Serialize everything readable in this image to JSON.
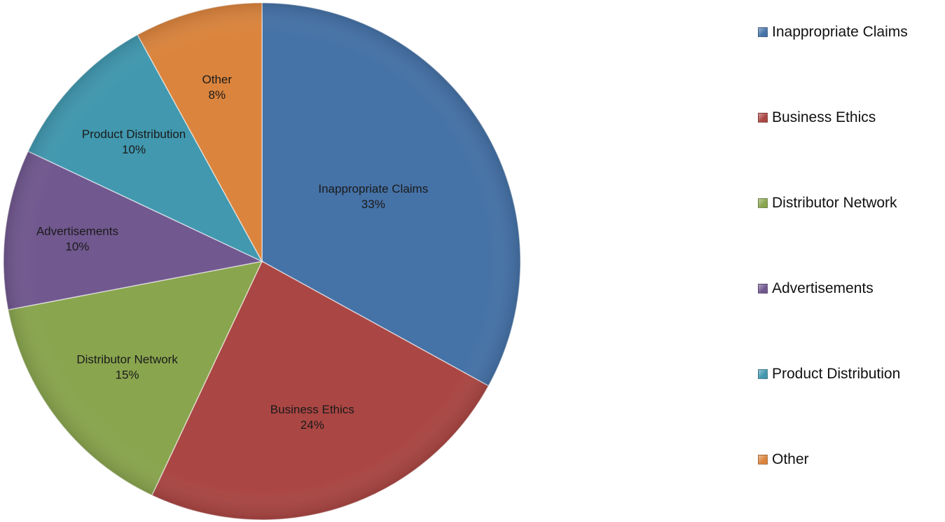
{
  "chart_data": {
    "type": "pie",
    "categories": [
      "Inappropriate Claims",
      "Business Ethics",
      "Distributor Network",
      "Advertisements",
      "Product Distribution",
      "Other"
    ],
    "values": [
      33,
      24,
      15,
      10,
      10,
      8
    ],
    "value_labels": [
      "33%",
      "24%",
      "15%",
      "10%",
      "10%",
      "8%"
    ],
    "colors": [
      "#4572A7",
      "#AA4643",
      "#89A54E",
      "#71588F",
      "#4198AF",
      "#DB843D"
    ],
    "start_angle": "12 o'clock",
    "direction": "clockwise",
    "legend": "right"
  }
}
